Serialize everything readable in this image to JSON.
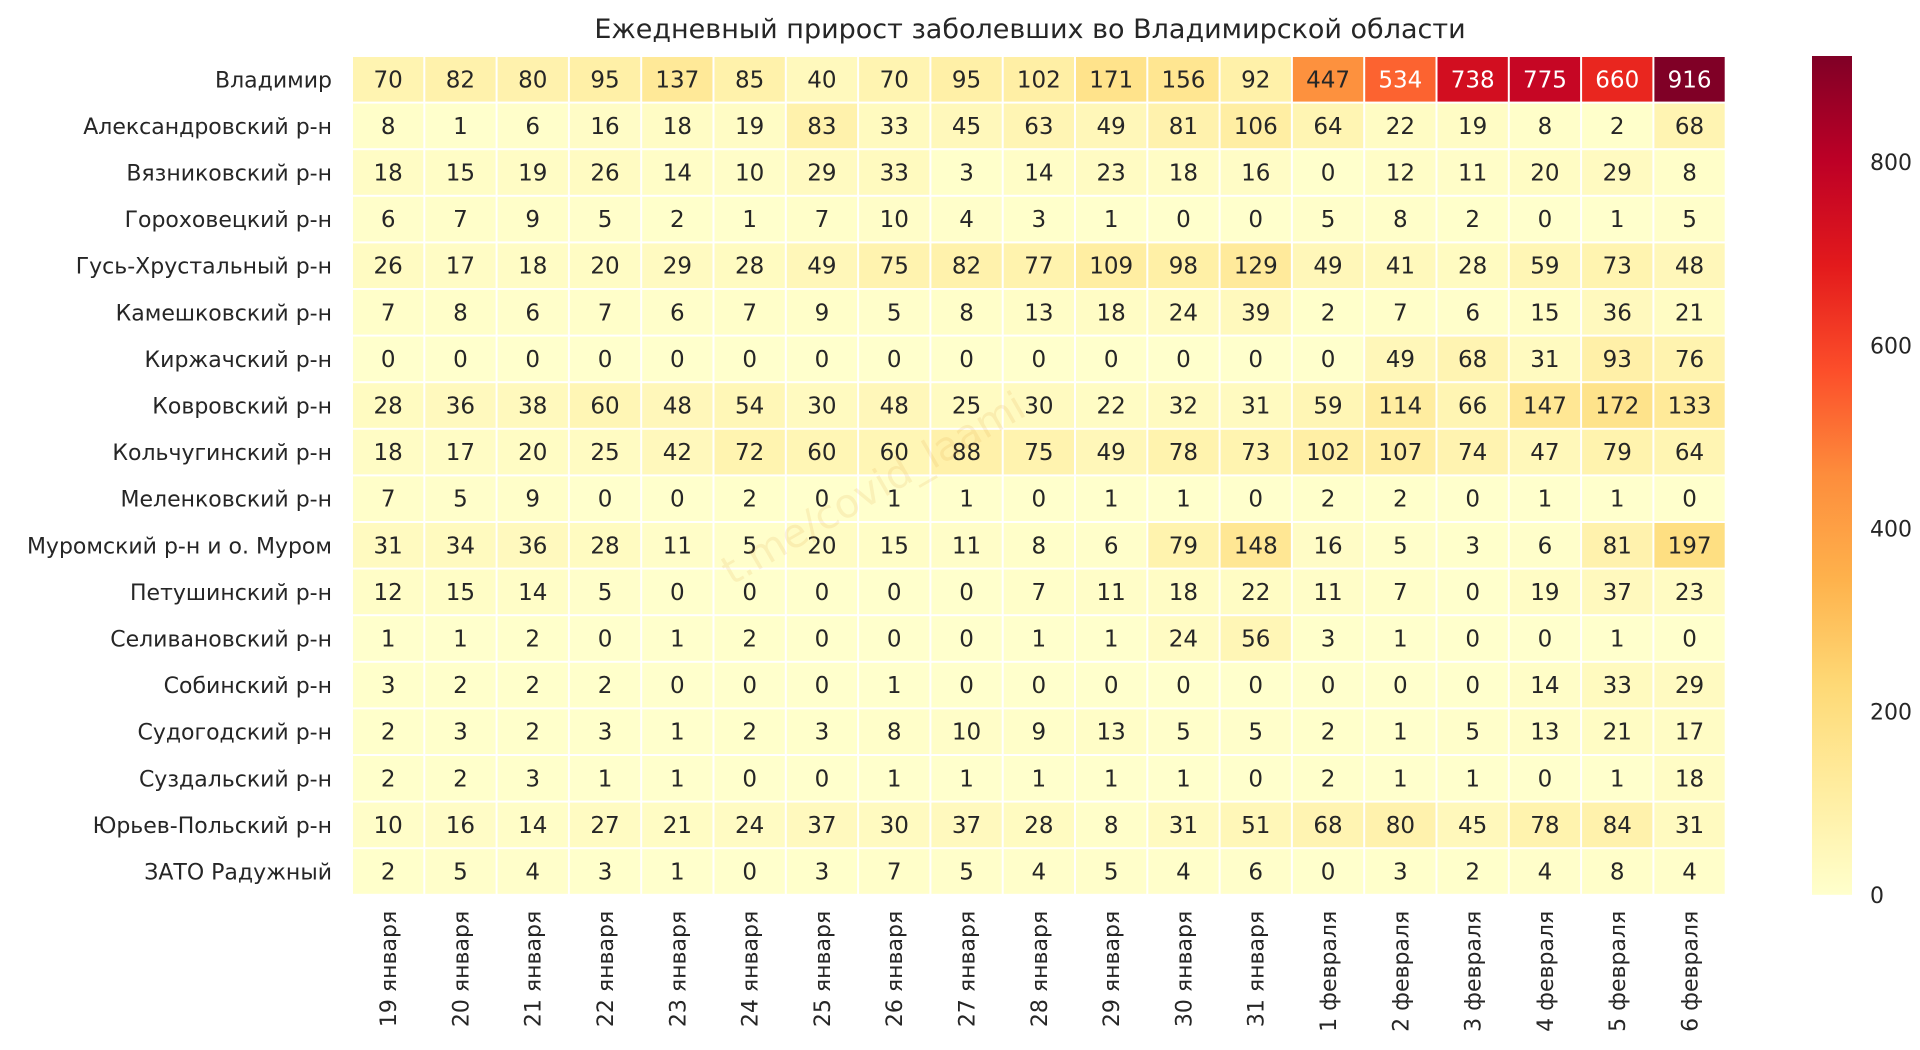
{
  "chart_data": {
    "type": "heatmap",
    "title": "Ежедневный прирост заболевших во Владимирской области",
    "xlabel": "",
    "ylabel": "",
    "columns": [
      "19 января",
      "20 января",
      "21 января",
      "22 января",
      "23 января",
      "24 января",
      "25 января",
      "26 января",
      "27 января",
      "28 января",
      "29 января",
      "30 января",
      "31 января",
      "1 февраля",
      "2 февраля",
      "3 февраля",
      "4 февраля",
      "5 февраля",
      "6 февраля"
    ],
    "rows": [
      "Владимир",
      "Александровский р-н",
      "Вязниковский р-н",
      "Гороховецкий р-н",
      "Гусь-Хрустальный р-н",
      "Камешковский р-н",
      "Киржачский р-н",
      "Ковровский р-н",
      "Кольчугинский р-н",
      "Меленковский р-н",
      "Муромский р-н и о. Муром",
      "Петушинский р-н",
      "Селивановский р-н",
      "Собинский р-н",
      "Судогодский р-н",
      "Суздальский р-н",
      "Юрьев-Польский р-н",
      "ЗАТО Радужный"
    ],
    "values": [
      [
        70,
        82,
        80,
        95,
        137,
        85,
        40,
        70,
        95,
        102,
        171,
        156,
        92,
        447,
        534,
        738,
        775,
        660,
        916
      ],
      [
        8,
        1,
        6,
        16,
        18,
        19,
        83,
        33,
        45,
        63,
        49,
        81,
        106,
        64,
        22,
        19,
        8,
        2,
        68
      ],
      [
        18,
        15,
        19,
        26,
        14,
        10,
        29,
        33,
        3,
        14,
        23,
        18,
        16,
        0,
        12,
        11,
        20,
        29,
        8
      ],
      [
        6,
        7,
        9,
        5,
        2,
        1,
        7,
        10,
        4,
        3,
        1,
        0,
        0,
        5,
        8,
        2,
        0,
        1,
        5
      ],
      [
        26,
        17,
        18,
        20,
        29,
        28,
        49,
        75,
        82,
        77,
        109,
        98,
        129,
        49,
        41,
        28,
        59,
        73,
        48
      ],
      [
        7,
        8,
        6,
        7,
        6,
        7,
        9,
        5,
        8,
        13,
        18,
        24,
        39,
        2,
        7,
        6,
        15,
        36,
        21
      ],
      [
        0,
        0,
        0,
        0,
        0,
        0,
        0,
        0,
        0,
        0,
        0,
        0,
        0,
        0,
        49,
        68,
        31,
        93,
        76
      ],
      [
        28,
        36,
        38,
        60,
        48,
        54,
        30,
        48,
        25,
        30,
        22,
        32,
        31,
        59,
        114,
        66,
        147,
        172,
        133
      ],
      [
        18,
        17,
        20,
        25,
        42,
        72,
        60,
        60,
        88,
        75,
        49,
        78,
        73,
        102,
        107,
        74,
        47,
        79,
        64
      ],
      [
        7,
        5,
        9,
        0,
        0,
        2,
        0,
        1,
        1,
        0,
        1,
        1,
        0,
        2,
        2,
        0,
        1,
        1,
        0
      ],
      [
        31,
        34,
        36,
        28,
        11,
        5,
        20,
        15,
        11,
        8,
        6,
        79,
        148,
        16,
        5,
        3,
        6,
        81,
        197
      ],
      [
        12,
        15,
        14,
        5,
        0,
        0,
        0,
        0,
        0,
        7,
        11,
        18,
        22,
        11,
        7,
        0,
        19,
        37,
        23
      ],
      [
        1,
        1,
        2,
        0,
        1,
        2,
        0,
        0,
        0,
        1,
        1,
        24,
        56,
        3,
        1,
        0,
        0,
        1,
        0
      ],
      [
        3,
        2,
        2,
        2,
        0,
        0,
        0,
        1,
        0,
        0,
        0,
        0,
        0,
        0,
        0,
        0,
        14,
        33,
        29
      ],
      [
        2,
        3,
        2,
        3,
        1,
        2,
        3,
        8,
        10,
        9,
        13,
        5,
        5,
        2,
        1,
        5,
        13,
        21,
        17
      ],
      [
        2,
        2,
        3,
        1,
        1,
        0,
        0,
        1,
        1,
        1,
        1,
        1,
        0,
        2,
        1,
        1,
        0,
        1,
        18
      ],
      [
        10,
        16,
        14,
        27,
        21,
        24,
        37,
        30,
        37,
        28,
        8,
        31,
        51,
        68,
        80,
        45,
        78,
        84,
        31
      ],
      [
        2,
        5,
        4,
        3,
        1,
        0,
        3,
        7,
        5,
        4,
        5,
        4,
        6,
        0,
        3,
        2,
        4,
        8,
        4
      ]
    ],
    "vmin": 0,
    "vmax": 916,
    "colorbar_ticks": [
      0,
      200,
      400,
      600,
      800
    ],
    "colormap": [
      "#ffffcc",
      "#ffeda0",
      "#fed976",
      "#feb24c",
      "#fd8d3c",
      "#fc4e2a",
      "#e31a1c",
      "#bd0026",
      "#800026"
    ],
    "watermark": "t.me/covid_laami"
  }
}
